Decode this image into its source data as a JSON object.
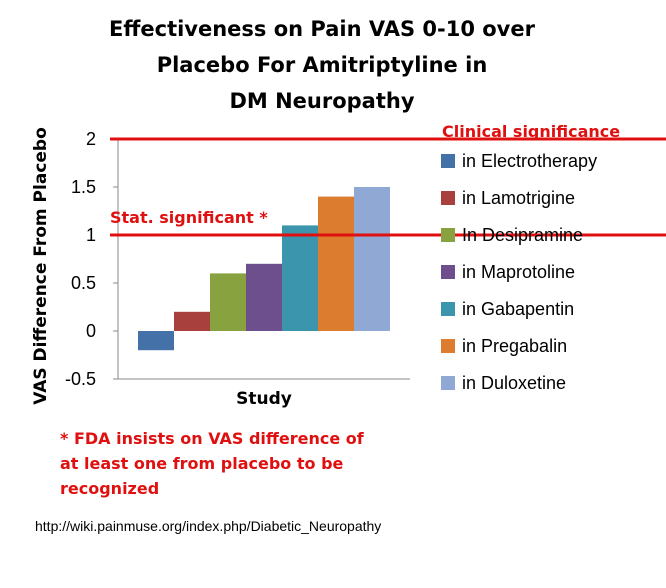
{
  "title_lines": [
    "Effectiveness on Pain VAS 0-10 over",
    "Placebo For Amitriptyline in",
    "DM Neuropathy"
  ],
  "chart_data": {
    "type": "bar",
    "title": "Effectiveness on Pain VAS 0-10 over Placebo For Amitriptyline in DM Neuropathy",
    "xlabel": "Study",
    "ylabel": "VAS Difference From Placebo",
    "ylim": [
      -0.5,
      2
    ],
    "yticks": [
      2,
      1.5,
      1,
      0.5,
      0,
      -0.5
    ],
    "ytick_labels": [
      "2",
      "1.5",
      "1",
      "0.5",
      "0",
      "-0.5"
    ],
    "categories": [
      ""
    ],
    "series": [
      {
        "name": "in Electrotherapy",
        "color": "#4472a8",
        "values": [
          -0.2
        ]
      },
      {
        "name": "in Lamotrigine",
        "color": "#a8403d",
        "values": [
          0.2
        ]
      },
      {
        "name": "In Desipramine",
        "color": "#87a23e",
        "values": [
          0.6
        ]
      },
      {
        "name": "in Maprotoline",
        "color": "#6d4f8e",
        "values": [
          0.7
        ]
      },
      {
        "name": "in Gabapentin",
        "color": "#3a95ad",
        "values": [
          1.1
        ]
      },
      {
        "name": "in Pregabalin",
        "color": "#dc7c2f",
        "values": [
          1.4
        ]
      },
      {
        "name": "in Duloxetine",
        "color": "#8fa8d4",
        "values": [
          1.5
        ]
      }
    ],
    "reference_lines": [
      {
        "value": 2,
        "label": "Clinical significance",
        "color": "#e01010"
      },
      {
        "value": 1,
        "label": "Stat. significant *",
        "color": "#e01010"
      }
    ],
    "legend_position": "right",
    "grid": false
  },
  "footnote_lines": [
    "* FDA insists on VAS difference of",
    "at least one from placebo to be",
    "recognized"
  ],
  "source_text": "http://wiki.painmuse.org/index.php/Diabetic_Neuropathy"
}
